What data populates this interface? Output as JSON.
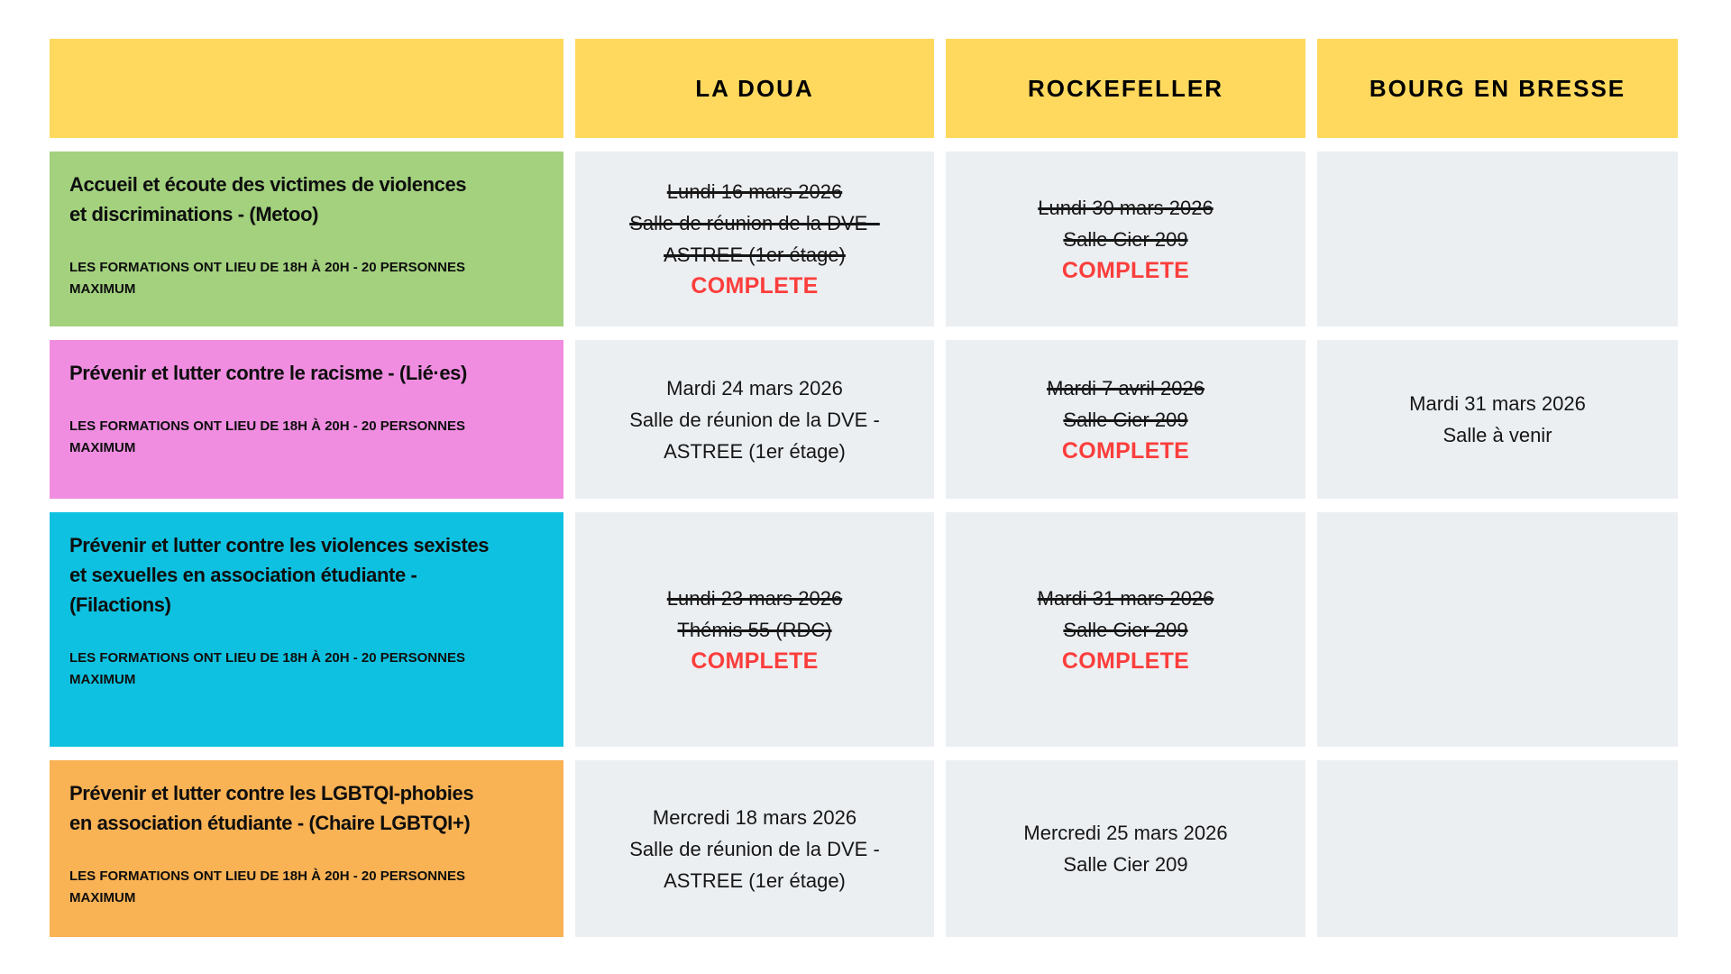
{
  "page": {
    "background": "#FFFFFF"
  },
  "styles": {
    "header_background": "#FFD95E",
    "session_background": "#ECEFF2",
    "status_color": "#FB3E3C",
    "text_color": "#161616"
  },
  "header": {
    "columns": [
      "",
      "LA DOUA",
      "ROCKEFELLER",
      "BOURG EN BRESSE"
    ]
  },
  "rows": [
    {
      "title": "Accueil et écoute des victimes de violences\net discriminations - (Metoo)",
      "note": "LES FORMATIONS ONT LIEU DE 18H À 20H - 20 PERSONNES\nMAXIMUM",
      "color": "#A3D17E",
      "sessions": {
        "la_doua": {
          "text": "Lundi 16 mars 2026\nSalle de réunion de la DVE -\nASTREE (1er étage)",
          "cancelled": true,
          "status": "COMPLETE"
        },
        "rockefeller": {
          "text": "Lundi 30 mars 2026\nSalle Cier 209",
          "cancelled": true,
          "status": "COMPLETE"
        },
        "bourg_en_bresse": {
          "text": "",
          "cancelled": false,
          "status": ""
        }
      }
    },
    {
      "title": "Prévenir et lutter contre le racisme - (Lié·es)",
      "note": "LES FORMATIONS ONT LIEU DE 18H À 20H - 20 PERSONNES\nMAXIMUM",
      "color": "#F08DE1",
      "sessions": {
        "la_doua": {
          "text": "Mardi 24 mars 2026\nSalle de réunion de la DVE -\nASTREE (1er étage)",
          "cancelled": false,
          "status": ""
        },
        "rockefeller": {
          "text": "Mardi 7 avril 2026\nSalle Cier 209",
          "cancelled": true,
          "status": "COMPLETE"
        },
        "bourg_en_bresse": {
          "text": "Mardi 31 mars 2026\nSalle à venir",
          "cancelled": false,
          "status": ""
        }
      }
    },
    {
      "title": "Prévenir et lutter contre les violences sexistes\net sexuelles en association étudiante -\n(Filactions)",
      "note": "LES FORMATIONS ONT LIEU DE 18H À 20H - 20 PERSONNES\nMAXIMUM",
      "color": "#0FC1E0",
      "sessions": {
        "la_doua": {
          "text": "Lundi 23 mars 2026\nThémis 55 (RDC)",
          "cancelled": true,
          "status": "COMPLETE"
        },
        "rockefeller": {
          "text": "Mardi 31 mars 2026\nSalle Cier 209",
          "cancelled": true,
          "status": "COMPLETE"
        },
        "bourg_en_bresse": {
          "text": "",
          "cancelled": false,
          "status": ""
        }
      }
    },
    {
      "title": "Prévenir et lutter contre les LGBTQI-phobies\nen association étudiante - (Chaire LGBTQI+)",
      "note": "LES FORMATIONS ONT LIEU DE 18H À 20H - 20 PERSONNES\nMAXIMUM",
      "color": "#F9B254",
      "sessions": {
        "la_doua": {
          "text": "Mercredi 18 mars 2026\nSalle de réunion de la DVE -\nASTREE (1er étage)",
          "cancelled": false,
          "status": ""
        },
        "rockefeller": {
          "text": "Mercredi 25 mars 2026\nSalle Cier 209",
          "cancelled": false,
          "status": ""
        },
        "bourg_en_bresse": {
          "text": "",
          "cancelled": false,
          "status": ""
        }
      }
    }
  ]
}
